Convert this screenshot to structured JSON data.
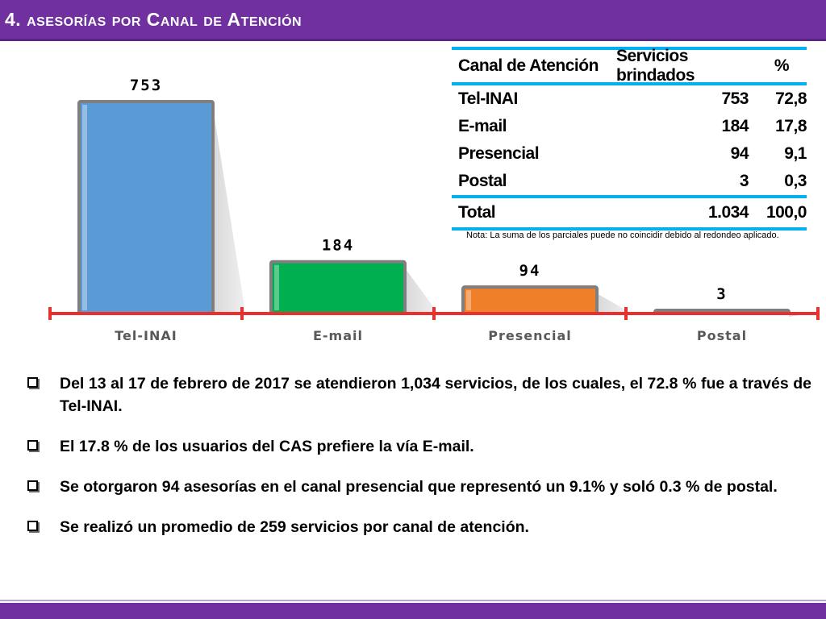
{
  "header": {
    "title": "4. asesorías por Canal de Atención"
  },
  "chart_data": {
    "type": "bar",
    "categories": [
      "Tel-INAI",
      "E-mail",
      "Presencial",
      "Postal"
    ],
    "values": [
      753,
      184,
      94,
      3
    ],
    "data_labels": [
      "753",
      "184",
      "94",
      "3"
    ],
    "colors": [
      "#5b9bd5",
      "#00b050",
      "#f07f2a",
      "#b7d7a8"
    ],
    "axis_color": "#e8312f",
    "ylim": [
      0,
      800
    ],
    "grid": false
  },
  "table": {
    "headers": [
      "Canal de Atención",
      "Servicios brindados",
      "%"
    ],
    "rows": [
      [
        "Tel-INAI",
        "753",
        "72,8"
      ],
      [
        "E-mail",
        "184",
        "17,8"
      ],
      [
        "Presencial",
        "94",
        "9,1"
      ],
      [
        "Postal",
        "3",
        "0,3"
      ]
    ],
    "total": [
      "Total",
      "1.034",
      "100,0"
    ],
    "note": "Nota: La suma de los parciales puede no coincidir debido al redondeo aplicado."
  },
  "bullets": [
    "Del 13 al 17 de febrero de 2017 se atendieron 1,034 servicios, de los cuales, el 72.8 % fue a través de Tel-INAI.",
    "El 17.8 % de los usuarios del CAS prefiere la vía E-mail.",
    "Se otorgaron 94 asesorías en el canal presencial que representó un 9.1% y soló 0.3 % de postal.",
    "Se realizó un promedio de 259 servicios por canal de atención."
  ]
}
